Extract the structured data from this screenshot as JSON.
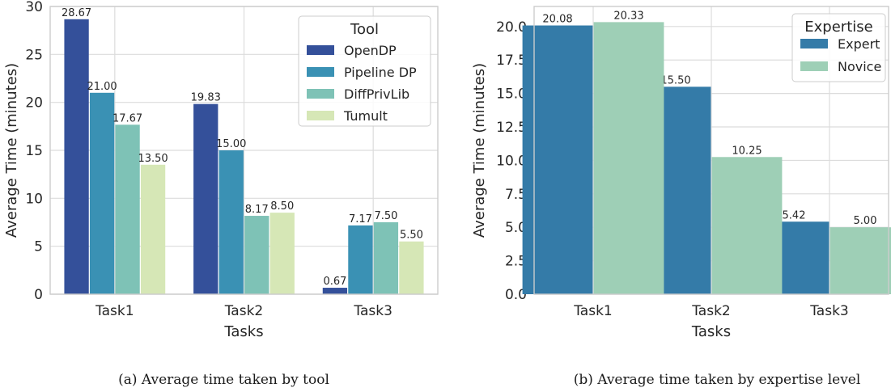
{
  "chart_data": [
    {
      "type": "bar",
      "title": "",
      "caption": "(a) Average time taken by tool",
      "xlabel": "Tasks",
      "ylabel": "Average Time (minutes)",
      "categories": [
        "Task1",
        "Task2",
        "Task3"
      ],
      "ylim": [
        0,
        30
      ],
      "yticks": [
        "0",
        "5",
        "10",
        "15",
        "20",
        "25",
        "30"
      ],
      "grid": true,
      "legend": {
        "title": "Tool",
        "position": "top-right"
      },
      "series": [
        {
          "name": "OpenDP",
          "color": "#34509a",
          "values": [
            28.67,
            19.83,
            0.67
          ],
          "labels": [
            "28.67",
            "19.83",
            "0.67"
          ]
        },
        {
          "name": "Pipeline DP",
          "color": "#3a91b4",
          "values": [
            21.0,
            15.0,
            7.17
          ],
          "labels": [
            "21.00",
            "15.00",
            "7.17"
          ]
        },
        {
          "name": "DiffPrivLib",
          "color": "#7ec2b6",
          "values": [
            17.67,
            8.17,
            7.5
          ],
          "labels": [
            "17.67",
            "8.17",
            "7.50"
          ]
        },
        {
          "name": "Tumult",
          "color": "#d6e7b6",
          "values": [
            13.5,
            8.5,
            5.5
          ],
          "labels": [
            "13.50",
            "8.50",
            "5.50"
          ]
        }
      ]
    },
    {
      "type": "bar",
      "title": "",
      "caption": "(b) Average time taken by expertise level",
      "xlabel": "Tasks",
      "ylabel": "Average Time (minutes)",
      "categories": [
        "Task1",
        "Task2",
        "Task3"
      ],
      "ylim": [
        0,
        21.5
      ],
      "yticks": [
        "0.0",
        "2.5",
        "5.0",
        "7.5",
        "10.0",
        "12.5",
        "15.0",
        "17.5",
        "20.0"
      ],
      "grid": true,
      "legend": {
        "title": "Expertise",
        "position": "top-right"
      },
      "series": [
        {
          "name": "Expert",
          "color": "#347ba8",
          "values": [
            20.08,
            15.5,
            5.42
          ],
          "labels": [
            "20.08",
            "15.50",
            "5.42"
          ]
        },
        {
          "name": "Novice",
          "color": "#9ecfb6",
          "values": [
            20.33,
            10.25,
            5.0
          ],
          "labels": [
            "20.33",
            "10.25",
            "5.00"
          ]
        }
      ]
    }
  ]
}
